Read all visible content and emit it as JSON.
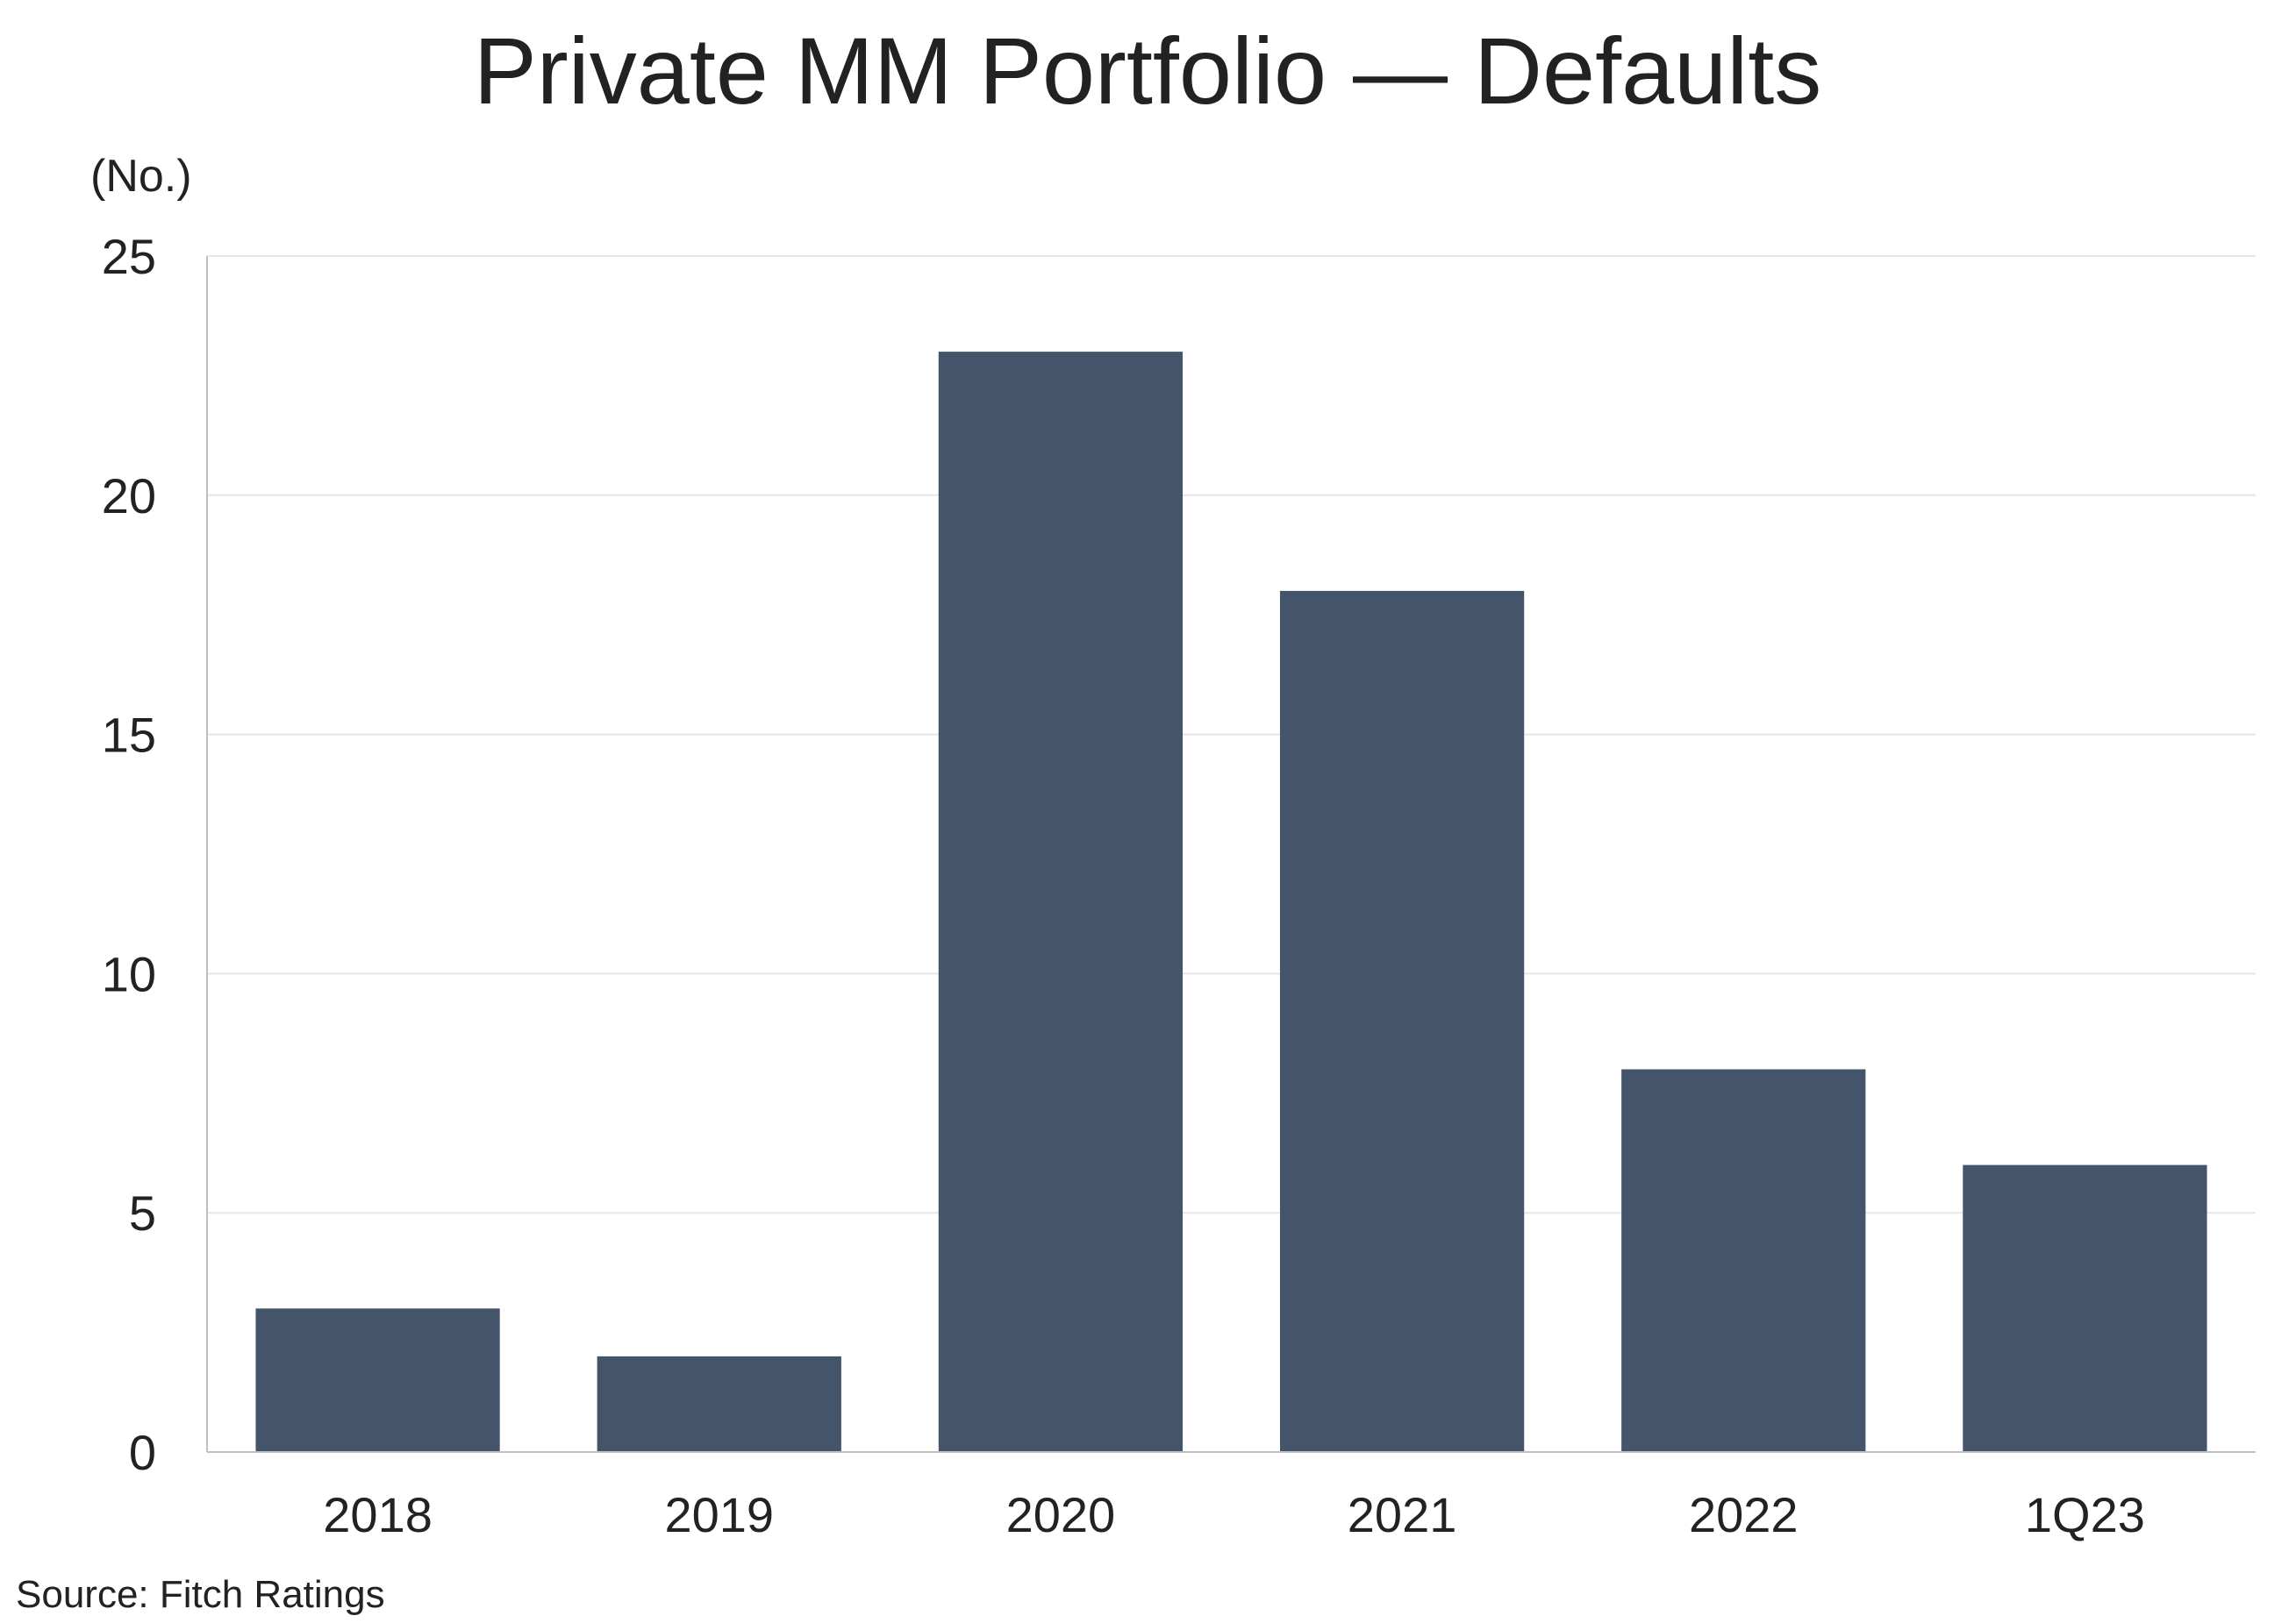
{
  "chart_data": {
    "type": "bar",
    "title": "Private MM Portfolio — Defaults",
    "ylabel": "(No.)",
    "xlabel": "",
    "categories": [
      "2018",
      "2019",
      "2020",
      "2021",
      "2022",
      "1Q23"
    ],
    "values": [
      3,
      2,
      23,
      18,
      8,
      6
    ],
    "ylim": [
      0,
      25
    ],
    "yticks": [
      "0",
      "5",
      "10",
      "15",
      "20",
      "25"
    ],
    "grid": true,
    "legend": "none",
    "bar_color": "#44546a",
    "grid_color": "#e6e6e6",
    "axis_color": "#bfbfbf"
  },
  "source": "Source: Fitch Ratings"
}
